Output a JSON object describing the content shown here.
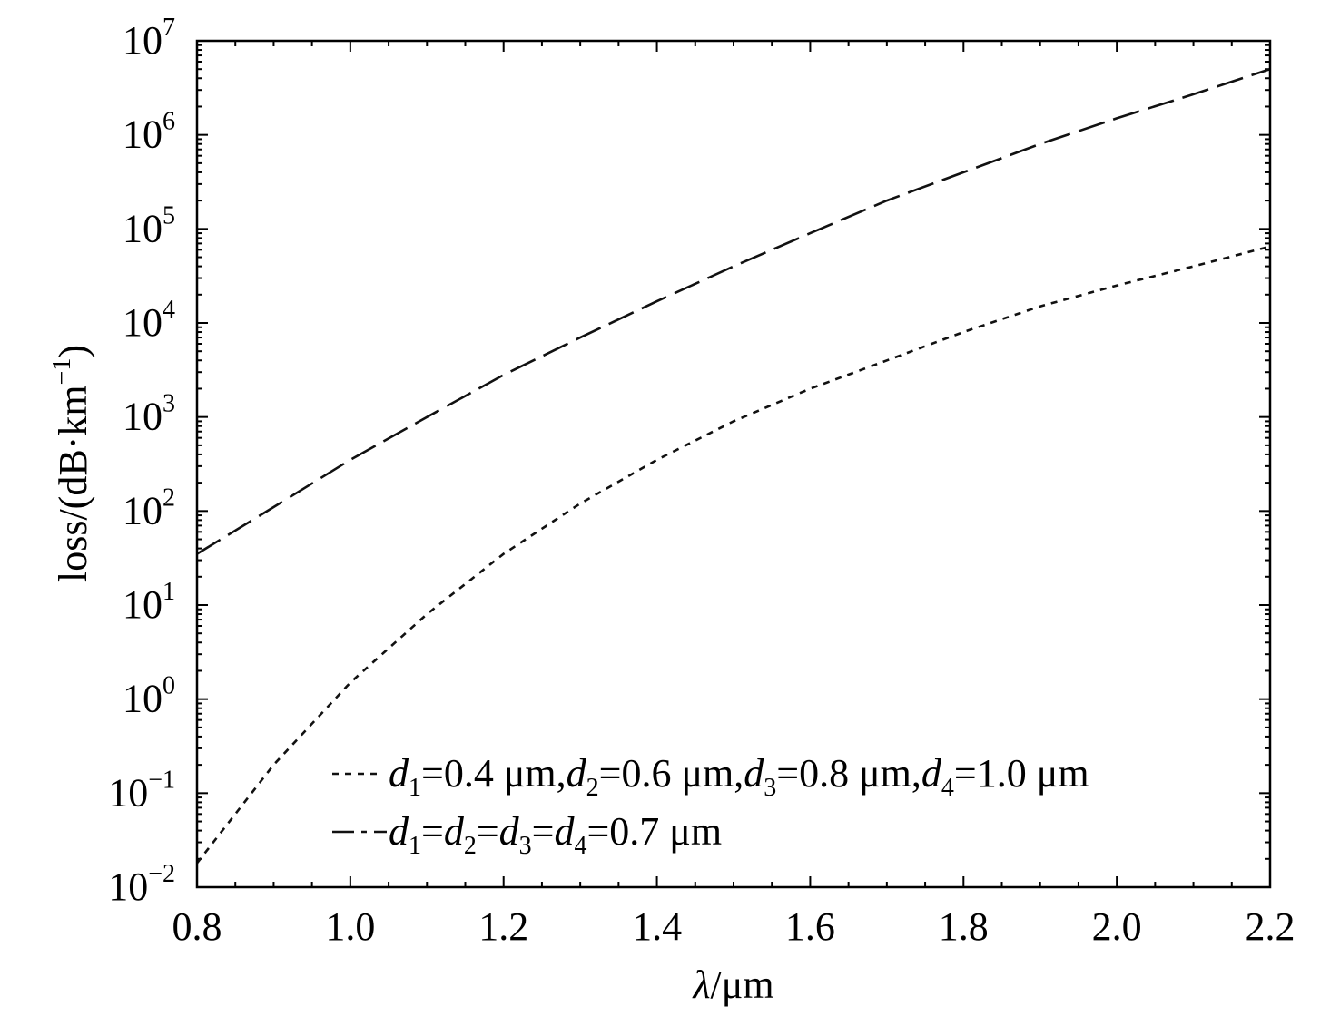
{
  "chart_data": {
    "type": "line",
    "xlabel_italic": "λ",
    "xlabel_rest": "/μm",
    "ylabel": "loss/(dB·km",
    "ylabel_exp": "−1",
    "ylabel_close": ")",
    "y_scale": "log",
    "xlim": [
      0.8,
      2.2
    ],
    "ylim_exponents": [
      -2,
      7
    ],
    "x_ticks": [
      "0.8",
      "1.0",
      "1.2",
      "1.4",
      "1.6",
      "1.8",
      "2.0",
      "2.2"
    ],
    "y_ticks": [
      {
        "base": "10",
        "exp": "−2"
      },
      {
        "base": "10",
        "exp": "−1"
      },
      {
        "base": "10",
        "exp": "0"
      },
      {
        "base": "10",
        "exp": "1"
      },
      {
        "base": "10",
        "exp": "2"
      },
      {
        "base": "10",
        "exp": "3"
      },
      {
        "base": "10",
        "exp": "4"
      },
      {
        "base": "10",
        "exp": "5"
      },
      {
        "base": "10",
        "exp": "6"
      },
      {
        "base": "10",
        "exp": "7"
      }
    ],
    "grid": false,
    "legend_position": "bottom-right",
    "x": [
      0.8,
      0.9,
      1.0,
      1.1,
      1.2,
      1.3,
      1.4,
      1.5,
      1.6,
      1.7,
      1.8,
      1.9,
      2.0,
      2.1,
      2.2
    ],
    "series": [
      {
        "style": "dotted",
        "line_style": "dotted",
        "values": [
          0.018,
          0.2,
          1.5,
          8,
          35,
          120,
          350,
          900,
          2000,
          4000,
          8000,
          15000,
          25000,
          40000,
          65000
        ],
        "legend_parts": [
          {
            "t": "d",
            "italic": true
          },
          {
            "t": "1",
            "sub": true
          },
          {
            "t": "=0.4 μm,"
          },
          {
            "t": "d",
            "italic": true
          },
          {
            "t": "2",
            "sub": true
          },
          {
            "t": "=0.6 μm,"
          },
          {
            "t": "d",
            "italic": true
          },
          {
            "t": "3",
            "sub": true
          },
          {
            "t": "=0.8 μm,"
          },
          {
            "t": "d",
            "italic": true
          },
          {
            "t": "4",
            "sub": true
          },
          {
            "t": "=1.0 μm"
          }
        ]
      },
      {
        "style": "dashed",
        "line_style": "dashed",
        "values": [
          35,
          110,
          350,
          1000,
          2800,
          7000,
          17000,
          40000,
          90000,
          200000,
          400000,
          800000,
          1500000,
          2700000,
          5000000
        ],
        "legend_parts": [
          {
            "t": "d",
            "italic": true
          },
          {
            "t": "1",
            "sub": true
          },
          {
            "t": "="
          },
          {
            "t": "d",
            "italic": true
          },
          {
            "t": "2",
            "sub": true
          },
          {
            "t": "="
          },
          {
            "t": "d",
            "italic": true
          },
          {
            "t": "3",
            "sub": true
          },
          {
            "t": "="
          },
          {
            "t": "d",
            "italic": true
          },
          {
            "t": "4",
            "sub": true
          },
          {
            "t": "=0.7 μm"
          }
        ]
      }
    ]
  }
}
